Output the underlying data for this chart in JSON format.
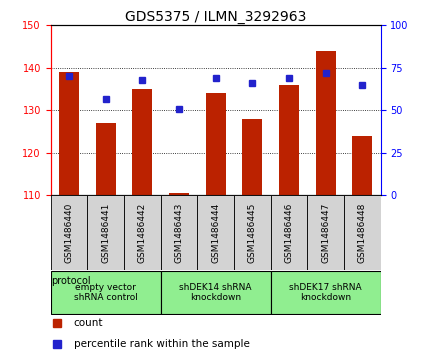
{
  "title": "GDS5375 / ILMN_3292963",
  "samples": [
    "GSM1486440",
    "GSM1486441",
    "GSM1486442",
    "GSM1486443",
    "GSM1486444",
    "GSM1486445",
    "GSM1486446",
    "GSM1486447",
    "GSM1486448"
  ],
  "counts": [
    139.0,
    127.0,
    135.0,
    110.5,
    134.0,
    128.0,
    136.0,
    144.0,
    124.0
  ],
  "percentiles": [
    70,
    57,
    68,
    51,
    69,
    66,
    69,
    72,
    65
  ],
  "ylim_left": [
    110,
    150
  ],
  "ylim_right": [
    0,
    100
  ],
  "yticks_left": [
    110,
    120,
    130,
    140,
    150
  ],
  "yticks_right": [
    0,
    25,
    50,
    75,
    100
  ],
  "bar_color": "#bb2200",
  "dot_color": "#2222cc",
  "bar_bottom": 110,
  "groups": [
    {
      "label": "empty vector\nshRNA control",
      "start": 0,
      "end": 3
    },
    {
      "label": "shDEK14 shRNA\nknockdown",
      "start": 3,
      "end": 6
    },
    {
      "label": "shDEK17 shRNA\nknockdown",
      "start": 6,
      "end": 9
    }
  ],
  "group_color": "#90ee90",
  "legend_count_label": "count",
  "legend_percentile_label": "percentile rank within the sample",
  "protocol_label": "protocol",
  "background_color": "#ffffff",
  "sample_box_color": "#d3d3d3",
  "title_fontsize": 10,
  "tick_fontsize": 7,
  "sample_fontsize": 6.5,
  "group_fontsize": 6.5,
  "legend_fontsize": 7.5
}
